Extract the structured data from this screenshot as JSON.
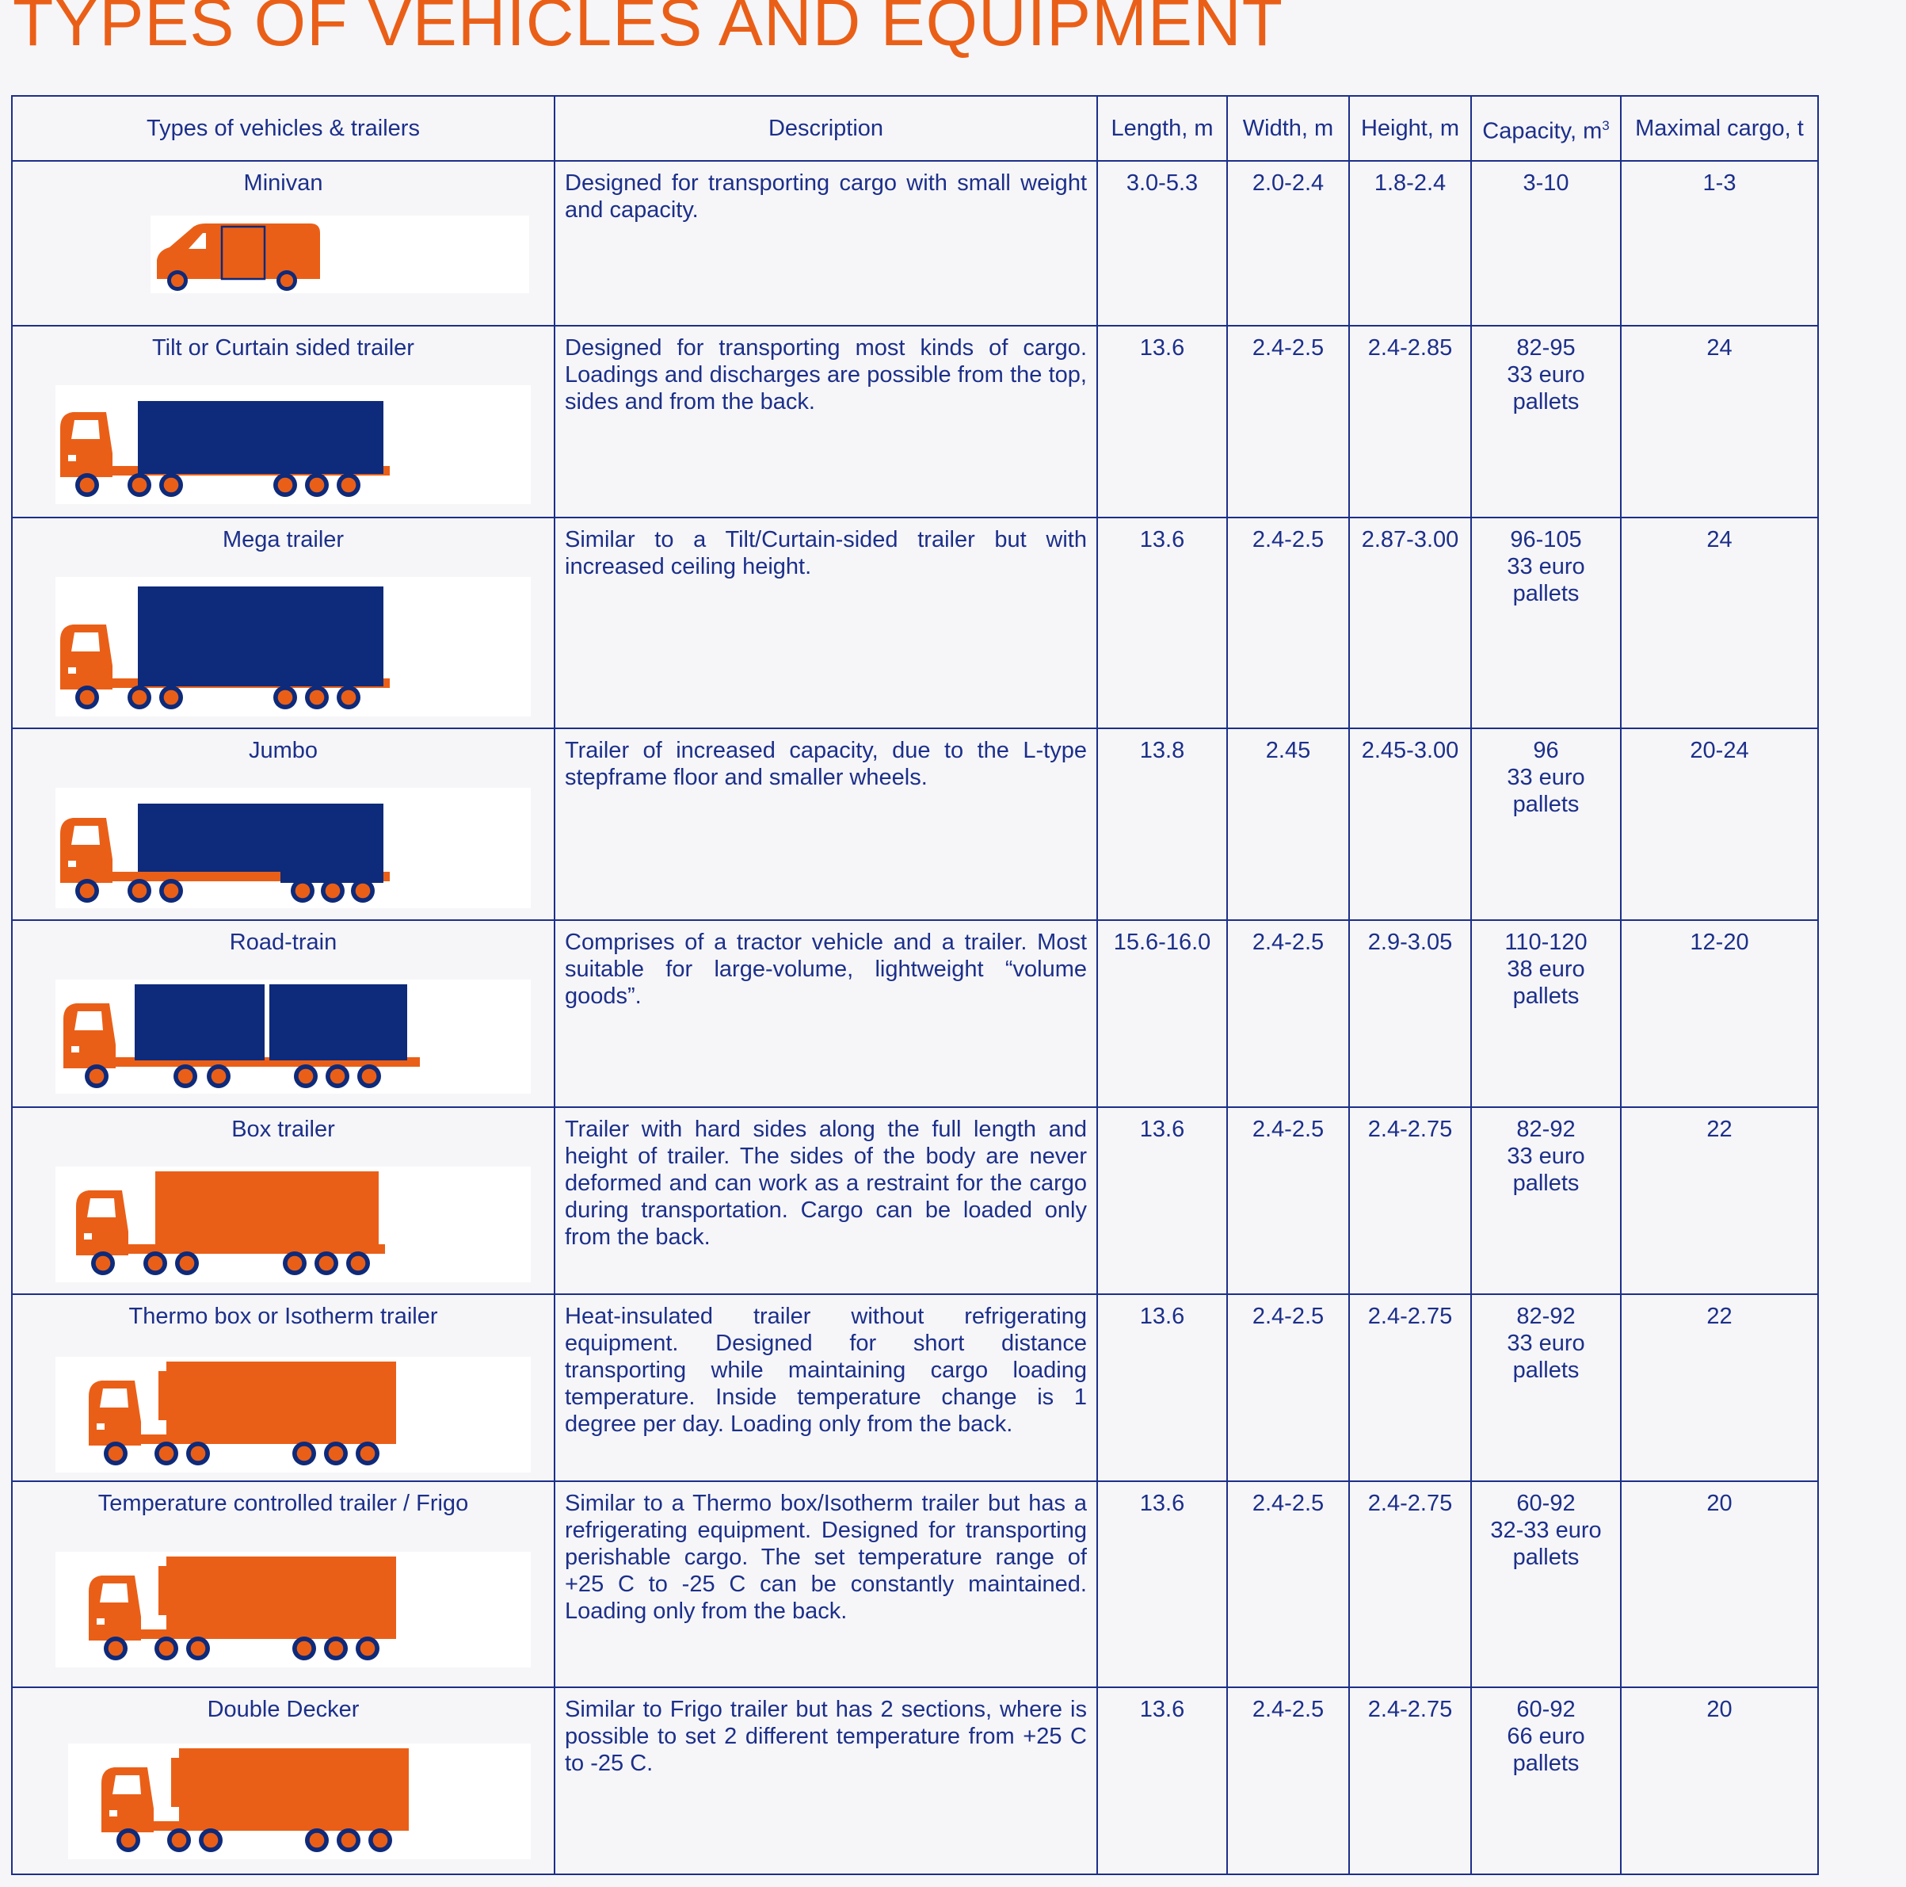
{
  "page_title": "TYPES OF VEHICLES AND EQUIPMENT",
  "colors": {
    "orange": "#ea5f17",
    "navy": "#0e2a7a",
    "line": "#1c2f8a"
  },
  "headers": {
    "type": "Types of vehicles & trailers",
    "description": "Description",
    "length": "Length, m",
    "width": "Width, m",
    "height": "Height, m",
    "capacity": "Capacity, m",
    "capacity_sup": "3",
    "max_cargo": "Maximal cargo, t"
  },
  "rows": [
    {
      "name": "Minivan",
      "icon": "minivan-icon",
      "description": "Designed for transporting cargo with small weight and capacity.",
      "length": "3.0-5.3",
      "width": "2.0-2.4",
      "height": "1.8-2.4",
      "capacity": [
        "3-10"
      ],
      "max_cargo": "1-3"
    },
    {
      "name": "Tilt or Curtain sided trailer",
      "icon": "curtain-trailer-truck-icon",
      "description": "Designed for transporting most kinds of cargo. Loadings and discharges are possible from the top, sides and from the back.",
      "length": "13.6",
      "width": "2.4-2.5",
      "height": "2.4-2.85",
      "capacity": [
        "82-95",
        "33 euro",
        "pallets"
      ],
      "max_cargo": "24"
    },
    {
      "name": "Mega trailer",
      "icon": "mega-trailer-truck-icon",
      "description": "Similar to a Tilt/Curtain-sided trailer but with increased ceiling height.",
      "length": "13.6",
      "width": "2.4-2.5",
      "height": "2.87-3.00",
      "capacity": [
        "96-105",
        "33 euro",
        "pallets"
      ],
      "max_cargo": "24"
    },
    {
      "name": "Jumbo",
      "icon": "jumbo-trailer-truck-icon",
      "description": "Trailer of increased capacity, due to the L-type stepframe floor and smaller  wheels.",
      "length": "13.8",
      "width": "2.45",
      "height": "2.45-3.00",
      "capacity": [
        "96",
        "33 euro",
        "pallets"
      ],
      "max_cargo": "20-24"
    },
    {
      "name": "Road-train",
      "icon": "road-train-truck-icon",
      "description": "Comprises of a tractor vehicle and a trailer. Most suitable for large-volume, lightweight “volume goods”.",
      "length": "15.6-16.0",
      "width": "2.4-2.5",
      "height": "2.9-3.05",
      "capacity": [
        "110-120",
        "38 euro",
        "pallets"
      ],
      "max_cargo": "12-20"
    },
    {
      "name": "Box trailer",
      "icon": "box-trailer-truck-icon",
      "description": "Trailer with hard sides along the full length and height of trailer. The sides of the body are never deformed and can work as a restraint for the cargo during transportation.  Cargo can be loaded only from the back.",
      "length": "13.6",
      "width": "2.4-2.5",
      "height": "2.4-2.75",
      "capacity": [
        "82-92",
        "33 euro",
        "pallets"
      ],
      "max_cargo": "22"
    },
    {
      "name": "Thermo box or Isotherm trailer",
      "icon": "thermo-trailer-truck-icon",
      "description": "Heat-insulated trailer without refrigerating equipment. Designed for short distance transporting while maintaining cargo loading temperature. Inside temperature change is  1 degree per day. Loading only from the back.",
      "length": "13.6",
      "width": "2.4-2.5",
      "height": "2.4-2.75",
      "capacity": [
        "82-92",
        "33 euro",
        "pallets"
      ],
      "max_cargo": "22"
    },
    {
      "name": "Temperature controlled  trailer / Frigo",
      "icon": "frigo-trailer-truck-icon",
      "description": "Similar to a Thermo box/Isotherm trailer but has a refrigerating equipment. Designed for transporting perishable cargo. The set temperature range of +25 C to -25 C can be  constantly maintained. Loading only from the back.",
      "length": "13.6",
      "width": "2.4-2.5",
      "height": "2.4-2.75",
      "capacity": [
        "60-92",
        "32-33 euro",
        "pallets"
      ],
      "max_cargo": "20"
    },
    {
      "name": "Double Decker",
      "icon": "double-decker-truck-icon",
      "description": "Similar to Frigo trailer but has 2 sections, where is possible to set 2 different temperature from +25 C to -25 C.",
      "length": "13.6",
      "width": "2.4-2.5",
      "height": "2.4-2.75",
      "capacity": [
        "60-92",
        "66 euro",
        "pallets"
      ],
      "max_cargo": "20"
    }
  ]
}
